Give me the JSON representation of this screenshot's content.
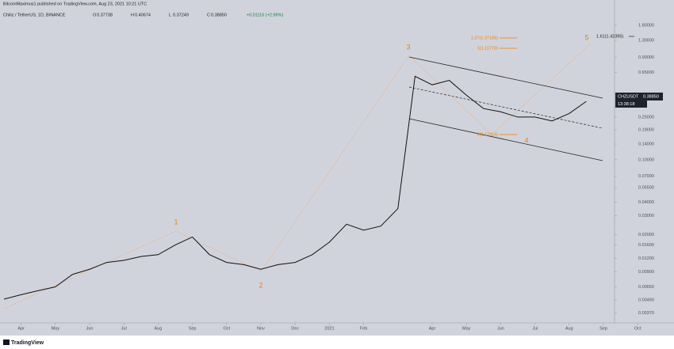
{
  "page": {
    "published": "BitcoinMaximus1 published on TradingView.com, Aug 23, 2021 10:21 UTC",
    "footer": "TradingView"
  },
  "chart_data": {
    "type": "line",
    "log_scale": true,
    "title": "Chiliz / TetherUS, 1D, BINANCE",
    "ohlc": [
      {
        "label": "O",
        "value": "0.37738"
      },
      {
        "label": "H",
        "value": "0.40674"
      },
      {
        "label": "L",
        "value": "0.37249"
      },
      {
        "label": "C",
        "value": "0.38850"
      }
    ],
    "change": "+0.01116 (+2.96%)",
    "categories": [
      null,
      "Apr",
      null,
      "May",
      null,
      "Jun",
      null,
      "Jul",
      null,
      "Aug",
      null,
      "Sep",
      null,
      "Oct",
      null,
      "Nov",
      null,
      "Dec",
      null,
      "2021",
      null,
      "Feb",
      null,
      null,
      null,
      "Apr",
      null,
      "May",
      null,
      "Jun",
      null,
      "Jul",
      null,
      "Aug",
      null,
      "Sep",
      null,
      "Oct"
    ],
    "series": [
      {
        "name": "CHZUSDT",
        "color": "#111111",
        "values": [
          0.005,
          0.0055,
          0.006,
          0.0065,
          0.0085,
          0.0095,
          0.011,
          0.0115,
          0.0125,
          0.013,
          0.016,
          0.019,
          0.013,
          0.011,
          0.0105,
          0.0095,
          0.0105,
          0.011,
          0.013,
          0.017,
          0.025,
          0.022,
          0.024,
          0.035,
          0.6,
          0.5,
          0.55,
          0.4,
          0.3,
          0.28,
          0.25,
          0.25,
          0.23,
          0.27,
          0.35,
          null,
          null,
          null
        ]
      }
    ],
    "ylim": [
      0.003,
      2.7
    ],
    "yticks": [
      {
        "value": 1.8,
        "label": "1.80000"
      },
      {
        "value": 1.3,
        "label": "1.30000"
      },
      {
        "value": 0.9,
        "label": "0.90000"
      },
      {
        "value": 0.65,
        "label": "0.65000"
      },
      {
        "value": 0.25,
        "label": "0.25000"
      },
      {
        "value": 0.19,
        "label": "0.19000"
      },
      {
        "value": 0.14,
        "label": "0.14000"
      },
      {
        "value": 0.1,
        "label": "0.10000"
      },
      {
        "value": 0.07,
        "label": "0.07000"
      },
      {
        "value": 0.055,
        "label": "0.05500"
      },
      {
        "value": 0.04,
        "label": "0.04000"
      },
      {
        "value": 0.03,
        "label": "0.03000"
      },
      {
        "value": 0.02,
        "label": "0.02000"
      },
      {
        "value": 0.016,
        "label": "0.01600"
      },
      {
        "value": 0.012,
        "label": "0.01200"
      },
      {
        "value": 0.009,
        "label": "0.00900"
      },
      {
        "value": 0.0065,
        "label": "0.00650"
      },
      {
        "value": 0.0049,
        "label": "0.00490"
      },
      {
        "value": 0.0037,
        "label": "0.00370"
      }
    ],
    "price_tag": {
      "symbol": "CHZUSDT",
      "price": "0.38850",
      "countdown": "13:38:18"
    },
    "annotations": [
      "1",
      "2",
      "3",
      "4",
      "5",
      "1.27(1.37165)",
      "1(1.11770)",
      "1.61(1.42395)",
      "0(0.17314)"
    ]
  }
}
